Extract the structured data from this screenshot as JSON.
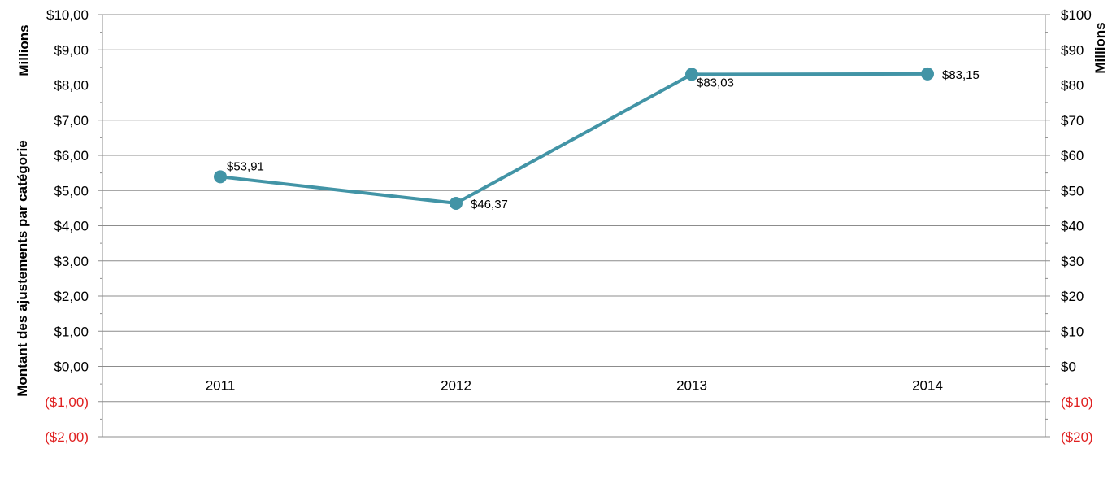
{
  "chart_data": {
    "type": "line",
    "categories": [
      "2011",
      "2012",
      "2013",
      "2014"
    ],
    "series": [
      {
        "values": [
          53.91,
          46.37,
          83.03,
          83.15
        ],
        "labels": [
          "$53,91",
          "$46,37",
          "$83,03",
          "$83,15"
        ],
        "color": "#4294a6"
      }
    ],
    "left_axis": {
      "title": "Montant des ajustements par catégorie",
      "unit_label": "Millions",
      "range": [
        -2,
        10
      ],
      "tick_values": [
        10,
        9,
        8,
        7,
        6,
        5,
        4,
        3,
        2,
        1,
        0,
        -1,
        -2
      ],
      "tick_labels": [
        "$10,00",
        "$9,00",
        "$8,00",
        "$7,00",
        "$6,00",
        "$5,00",
        "$4,00",
        "$3,00",
        "$2,00",
        "$1,00",
        "$0,00",
        "($1,00)",
        "($2,00)"
      ]
    },
    "right_axis": {
      "unit_label": "Millions",
      "range": [
        -20,
        100
      ],
      "tick_values": [
        100,
        90,
        80,
        70,
        60,
        50,
        40,
        30,
        20,
        10,
        0,
        -10,
        -20
      ],
      "tick_labels": [
        "$100",
        "$90",
        "$80",
        "$70",
        "$60",
        "$50",
        "$40",
        "$30",
        "$20",
        "$10",
        "$0",
        "($10)",
        "($20)"
      ]
    },
    "grid": true,
    "legend": "none",
    "colors": {
      "negative_tick": "#e02020",
      "positive_tick": "#000000",
      "gridline": "#8c8c8c"
    }
  }
}
